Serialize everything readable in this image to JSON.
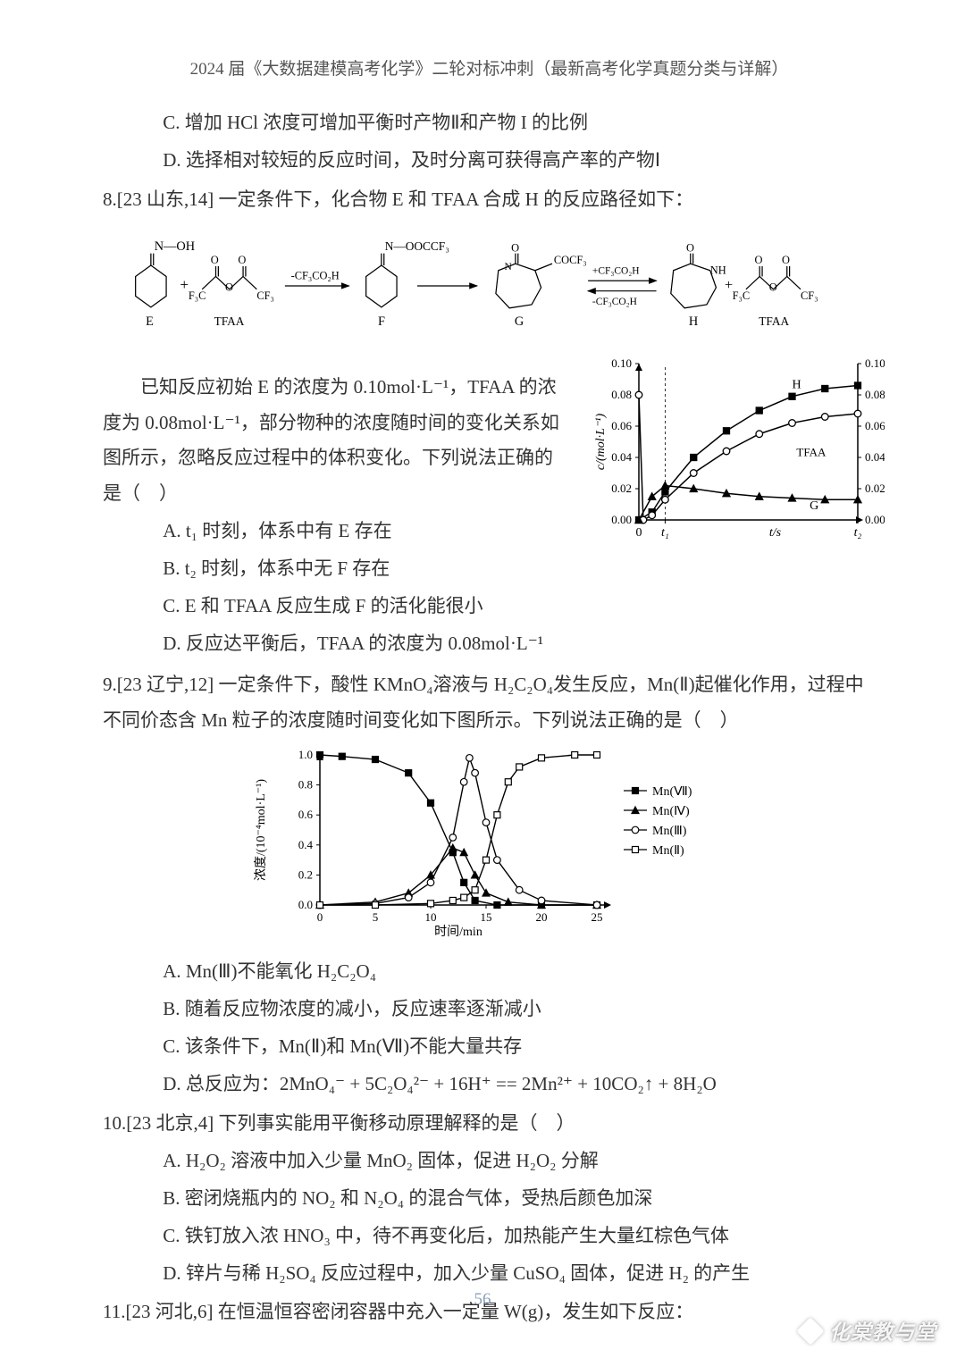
{
  "header": "2024 届《大数据建模高考化学》二轮对标冲刺（最新高考化学真题分类与详解）",
  "page_number": "56",
  "watermark": "化棠教与堂",
  "pre_options": {
    "c": "C. 增加 HCl 浓度可增加平衡时产物Ⅱ和产物 I 的比例",
    "d": "D. 选择相对较短的反应时间，及时分离可获得高产率的产物Ⅰ"
  },
  "q8": {
    "stem": "8.[23 山东,14] 一定条件下，化合物 E 和 TFAA 合成 H 的反应路径如下：",
    "para": "已知反应初始 E 的浓度为 0.10mol·L⁻¹，TFAA 的浓度为 0.08mol·L⁻¹，部分物种的浓度随时间的变化关系如图所示，忽略反应过程中的体积变化。下列说法正确的是（　）",
    "opts": {
      "a": "A. t₁ 时刻，体系中有 E 存在",
      "b": "B. t₂ 时刻，体系中无 F 存在",
      "c": "C. E 和 TFAA 反应生成 F 的活化能很小",
      "d": "D. 反应达平衡后，TFAA 的浓度为 0.08mol·L⁻¹"
    },
    "reaction": {
      "labels": {
        "E": "E",
        "TFAA": "TFAA",
        "F": "F",
        "G": "G",
        "H": "H"
      },
      "arrows": {
        "a1": "-CF₃CO₂H",
        "a2_top": "+CF₃CO₂H",
        "a2_bot": "-CF₃CO₂H"
      },
      "groups": {
        "noh": "N—OH",
        "noccf3": "N—OOCCF₃",
        "cocf3": "COCF₃",
        "nh": "NH",
        "o_dbl": "O",
        "cf3": "CF₃",
        "f3c": "F₃C"
      }
    },
    "chart": {
      "type": "line-scatter",
      "ylabel": "c/(mol·L⁻¹)",
      "xlabel": "t/s",
      "ylim": [
        0,
        0.1
      ],
      "yticks": [
        0,
        0.02,
        0.04,
        0.06,
        0.08,
        0.1
      ],
      "rightticks": [
        0,
        0.02,
        0.04,
        0.06,
        0.08,
        0.1
      ],
      "xmarks": [
        "0",
        "t₁",
        "t₂"
      ],
      "series": [
        {
          "name": "H",
          "marker": "square-filled",
          "color": "#000000",
          "linewidth": 1.5,
          "points": [
            [
              0,
              0
            ],
            [
              0.06,
              0.005
            ],
            [
              0.12,
              0.018
            ],
            [
              0.25,
              0.04
            ],
            [
              0.4,
              0.057
            ],
            [
              0.55,
              0.07
            ],
            [
              0.7,
              0.079
            ],
            [
              0.85,
              0.084
            ],
            [
              1.0,
              0.086
            ]
          ]
        },
        {
          "name": "TFAA",
          "marker": "circle-open",
          "color": "#000000",
          "linewidth": 1.5,
          "points": [
            [
              0,
              0.08
            ],
            [
              0.02,
              0.0
            ],
            [
              0.06,
              0.003
            ],
            [
              0.12,
              0.013
            ],
            [
              0.25,
              0.03
            ],
            [
              0.4,
              0.044
            ],
            [
              0.55,
              0.055
            ],
            [
              0.7,
              0.062
            ],
            [
              0.85,
              0.066
            ],
            [
              1.0,
              0.068
            ]
          ]
        },
        {
          "name": "G",
          "marker": "triangle-filled",
          "color": "#000000",
          "linewidth": 1.5,
          "points": [
            [
              0,
              0
            ],
            [
              0.06,
              0.015
            ],
            [
              0.12,
              0.022
            ],
            [
              0.25,
              0.02
            ],
            [
              0.4,
              0.017
            ],
            [
              0.55,
              0.015
            ],
            [
              0.7,
              0.014
            ],
            [
              0.85,
              0.013
            ],
            [
              1.0,
              0.013
            ]
          ]
        }
      ],
      "series_labels": {
        "H": "H",
        "TFAA": "TFAA",
        "G": "G"
      },
      "background_color": "#ffffff",
      "axis_color": "#000000"
    }
  },
  "q9": {
    "stem": "9.[23 辽宁,12] 一定条件下，酸性 KMnO₄溶液与 H₂C₂O₄发生反应，Mn(Ⅱ)起催化作用，过程中不同价态含 Mn 粒子的浓度随时间变化如下图所示。下列说法正确的是（　）",
    "opts": {
      "a": "A. Mn(Ⅲ)不能氧化 H₂C₂O₄",
      "b": "B. 随着反应物浓度的减小，反应速率逐渐减小",
      "c": "C. 该条件下，Mn(Ⅱ)和 Mn(Ⅶ)不能大量共存",
      "d": "D. 总反应为：2MnO₄⁻ + 5C₂O₄²⁻ + 16H⁺ == 2Mn²⁺ + 10CO₂↑ + 8H₂O"
    },
    "chart": {
      "type": "line-scatter",
      "ylabel": "浓度/(10⁻⁴mol·L⁻¹)",
      "xlabel": "时间/min",
      "ylim": [
        0.0,
        1.0
      ],
      "yticks": [
        0.0,
        0.2,
        0.4,
        0.6,
        0.8,
        1.0
      ],
      "xlim": [
        0,
        25
      ],
      "xticks": [
        0,
        5,
        10,
        15,
        20,
        25
      ],
      "axis_color": "#000000",
      "background_color": "#ffffff",
      "legend": [
        {
          "label": "Mn(Ⅶ)",
          "marker": "square-filled"
        },
        {
          "label": "Mn(Ⅳ)",
          "marker": "triangle-filled"
        },
        {
          "label": "Mn(Ⅲ)",
          "marker": "circle-open"
        },
        {
          "label": "Mn(Ⅱ)",
          "marker": "square-open"
        }
      ],
      "series": [
        {
          "name": "Mn(Ⅶ)",
          "marker": "square-filled",
          "color": "#000000",
          "points": [
            [
              0,
              1.0
            ],
            [
              2,
              0.99
            ],
            [
              5,
              0.97
            ],
            [
              8,
              0.88
            ],
            [
              10,
              0.68
            ],
            [
              12,
              0.35
            ],
            [
              13,
              0.15
            ],
            [
              14,
              0.03
            ],
            [
              16,
              0.0
            ],
            [
              20,
              0.0
            ],
            [
              25,
              0.0
            ]
          ]
        },
        {
          "name": "Mn(Ⅳ)",
          "marker": "triangle-filled",
          "color": "#000000",
          "points": [
            [
              0,
              0.0
            ],
            [
              5,
              0.02
            ],
            [
              8,
              0.08
            ],
            [
              10,
              0.2
            ],
            [
              12,
              0.38
            ],
            [
              13,
              0.35
            ],
            [
              14,
              0.2
            ],
            [
              15,
              0.08
            ],
            [
              17,
              0.02
            ],
            [
              20,
              0.0
            ],
            [
              25,
              0.0
            ]
          ]
        },
        {
          "name": "Mn(Ⅲ)",
          "marker": "circle-open",
          "color": "#000000",
          "points": [
            [
              0,
              0.0
            ],
            [
              5,
              0.01
            ],
            [
              8,
              0.05
            ],
            [
              10,
              0.15
            ],
            [
              12,
              0.45
            ],
            [
              13,
              0.82
            ],
            [
              13.5,
              0.98
            ],
            [
              14,
              0.88
            ],
            [
              15,
              0.55
            ],
            [
              16,
              0.3
            ],
            [
              18,
              0.1
            ],
            [
              20,
              0.03
            ],
            [
              25,
              0.0
            ]
          ]
        },
        {
          "name": "Mn(Ⅱ)",
          "marker": "square-open",
          "color": "#000000",
          "points": [
            [
              0,
              0.0
            ],
            [
              5,
              0.0
            ],
            [
              10,
              0.01
            ],
            [
              12,
              0.03
            ],
            [
              13,
              0.05
            ],
            [
              14,
              0.1
            ],
            [
              15,
              0.3
            ],
            [
              16,
              0.6
            ],
            [
              17,
              0.82
            ],
            [
              18,
              0.92
            ],
            [
              20,
              0.98
            ],
            [
              23,
              1.0
            ],
            [
              25,
              1.0
            ]
          ]
        }
      ]
    }
  },
  "q10": {
    "stem": "10.[23 北京,4] 下列事实能用平衡移动原理解释的是（　）",
    "opts": {
      "a": "A. H₂O₂ 溶液中加入少量 MnO₂ 固体，促进 H₂O₂ 分解",
      "b": "B. 密闭烧瓶内的 NO₂ 和 N₂O₄ 的混合气体，受热后颜色加深",
      "c": "C. 铁钉放入浓 HNO₃ 中，待不再变化后，加热能产生大量红棕色气体",
      "d": "D. 锌片与稀 H₂SO₄ 反应过程中，加入少量 CuSO₄ 固体，促进 H₂ 的产生"
    }
  },
  "q11": {
    "stem": "11.[23 河北,6] 在恒温恒容密闭容器中充入一定量 W(g)，发生如下反应："
  }
}
